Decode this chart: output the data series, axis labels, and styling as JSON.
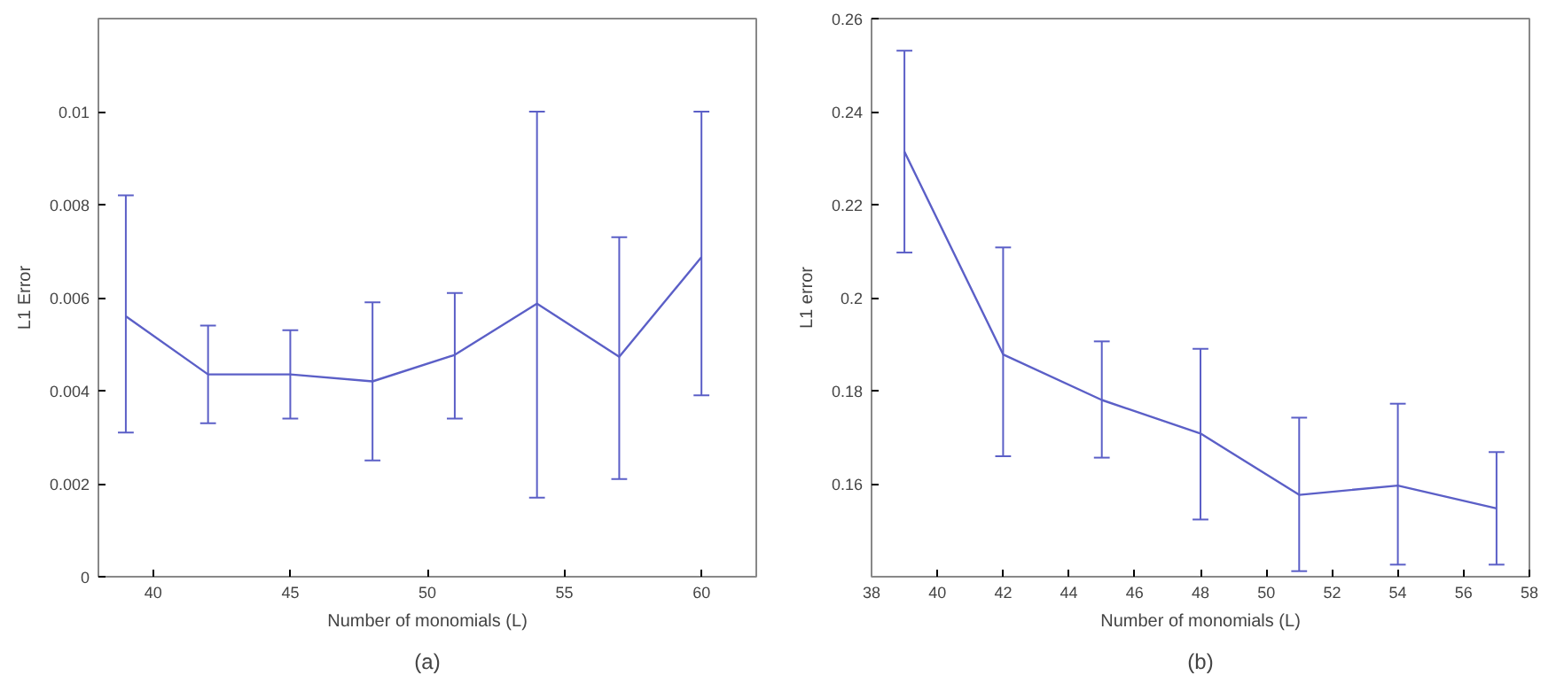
{
  "chart_data": [
    {
      "type": "line",
      "xlabel": "Number of monomials (L)",
      "ylabel": "L1 Error",
      "annotations": [
        "(a)"
      ],
      "x": [
        39,
        42,
        45,
        48,
        51,
        54,
        57,
        60
      ],
      "xlim": [
        38,
        62
      ],
      "ylim": [
        0,
        0.012
      ],
      "xticks": [
        40,
        45,
        50,
        55,
        60
      ],
      "yticks": [
        0,
        0.002,
        0.004,
        0.006,
        0.008,
        0.01
      ],
      "grid": false,
      "marker": "none",
      "line_style": "solid",
      "series": [
        {
          "color": "#5b5fc7",
          "values": [
            0.0056,
            0.00435,
            0.00435,
            0.0042,
            0.00477,
            0.00587,
            0.00473,
            0.00687
          ],
          "errors": [
            [
              0.0031,
              0.0082
            ],
            [
              0.0033,
              0.0054
            ],
            [
              0.0034,
              0.0053
            ],
            [
              0.0025,
              0.0059
            ],
            [
              0.0034,
              0.0061
            ],
            [
              0.0017,
              0.01
            ],
            [
              0.0021,
              0.0073
            ],
            [
              0.0039,
              0.01
            ]
          ]
        }
      ]
    },
    {
      "type": "line",
      "xlabel": "Number of monomials (L)",
      "ylabel": "L1 error",
      "annotations": [
        "(b)"
      ],
      "x": [
        39,
        42,
        45,
        48,
        51,
        54,
        57
      ],
      "xlim": [
        38,
        58
      ],
      "ylim": [
        0.14,
        0.26
      ],
      "xticks": [
        38,
        40,
        42,
        44,
        46,
        48,
        50,
        52,
        54,
        56,
        58
      ],
      "yticks": [
        0.16,
        0.18,
        0.2,
        0.22,
        0.24,
        0.26
      ],
      "grid": false,
      "marker": "none",
      "line_style": "solid",
      "series": [
        {
          "color": "#5b5fc7",
          "values": [
            0.2314,
            0.1878,
            0.178,
            0.1708,
            0.1576,
            0.1596,
            0.1547
          ],
          "errors": [
            [
              0.2097,
              0.2531
            ],
            [
              0.1659,
              0.2108
            ],
            [
              0.1656,
              0.1906
            ],
            [
              0.1523,
              0.189
            ],
            [
              0.1412,
              0.1742
            ],
            [
              0.1426,
              0.1772
            ],
            [
              0.1426,
              0.1668
            ]
          ]
        }
      ]
    }
  ]
}
